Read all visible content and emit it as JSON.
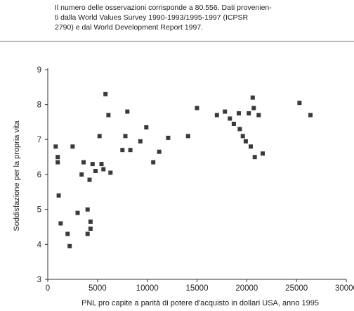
{
  "note": {
    "lines": [
      "Il numero delle osservazioni corrisponde a 80.556. Dati provenien-",
      "ti dalla World Values Survey 1990-1993/1995-1997 (ICPSR",
      "2790) e dal World Development Report 1997."
    ]
  },
  "chart_data": {
    "type": "scatter",
    "title": "",
    "xlabel": "PNL pro capite a parità di potere d'acquisto in dollari USA, anno 1995",
    "ylabel": "Soddisfazione per la propria vita",
    "xlim": [
      0,
      30000
    ],
    "ylim": [
      3,
      9
    ],
    "xticks": [
      0,
      5000,
      10000,
      15000,
      20000,
      25000,
      30000
    ],
    "yticks": [
      3,
      4,
      5,
      6,
      7,
      8,
      9
    ],
    "grid": false,
    "legend": false,
    "marker": "square",
    "marker_color": "#3a3a3a",
    "points": [
      [
        800,
        6.8
      ],
      [
        1000,
        6.5
      ],
      [
        1000,
        6.35
      ],
      [
        1100,
        5.4
      ],
      [
        1300,
        4.6
      ],
      [
        2000,
        4.3
      ],
      [
        2200,
        3.95
      ],
      [
        2500,
        6.8
      ],
      [
        3000,
        4.9
      ],
      [
        3400,
        6.0
      ],
      [
        3600,
        6.35
      ],
      [
        4000,
        5.0
      ],
      [
        4000,
        4.3
      ],
      [
        4200,
        5.85
      ],
      [
        4300,
        4.65
      ],
      [
        4300,
        4.45
      ],
      [
        4500,
        6.3
      ],
      [
        4800,
        6.1
      ],
      [
        5200,
        7.1
      ],
      [
        5400,
        6.3
      ],
      [
        5600,
        6.15
      ],
      [
        5800,
        8.3
      ],
      [
        6100,
        7.7
      ],
      [
        6300,
        6.05
      ],
      [
        7500,
        6.7
      ],
      [
        7800,
        7.1
      ],
      [
        8000,
        7.8
      ],
      [
        8300,
        6.7
      ],
      [
        9300,
        6.95
      ],
      [
        9900,
        7.35
      ],
      [
        10600,
        6.35
      ],
      [
        11200,
        6.65
      ],
      [
        12100,
        7.05
      ],
      [
        14100,
        7.1
      ],
      [
        15000,
        7.9
      ],
      [
        17000,
        7.7
      ],
      [
        17800,
        7.8
      ],
      [
        18300,
        7.6
      ],
      [
        18700,
        7.45
      ],
      [
        19200,
        7.75
      ],
      [
        19300,
        7.3
      ],
      [
        19600,
        7.1
      ],
      [
        19900,
        6.95
      ],
      [
        20200,
        7.75
      ],
      [
        20400,
        6.8
      ],
      [
        20600,
        8.2
      ],
      [
        20700,
        7.9
      ],
      [
        20800,
        6.5
      ],
      [
        21200,
        7.7
      ],
      [
        21600,
        6.6
      ],
      [
        25300,
        8.05
      ],
      [
        26400,
        7.7
      ]
    ]
  }
}
